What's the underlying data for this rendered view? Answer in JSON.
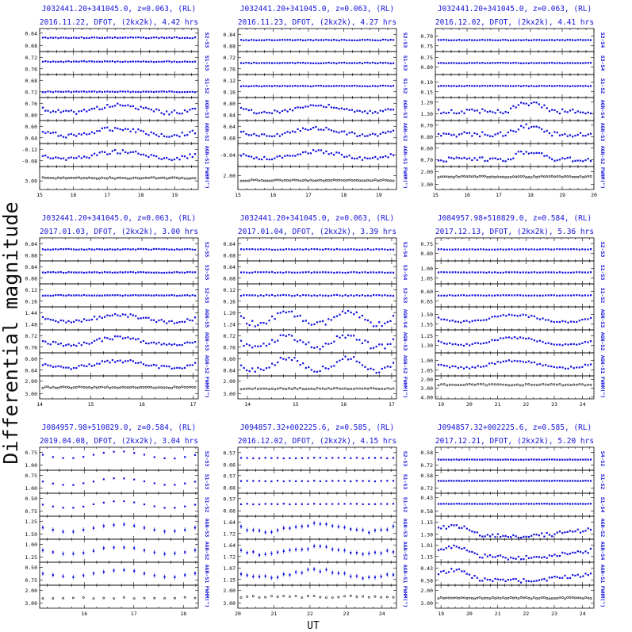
{
  "figure": {
    "ylabel": "Differential magnitude",
    "xlabel": "UT",
    "title_color": "#1515d8",
    "point_color": "#0c0ce0",
    "fwhm_color": "#111111"
  },
  "chart_data": [
    {
      "type": "scatter",
      "title1": "J032441.20+341045.0, z=0.063, (RL)",
      "title2": "2016.11.22, DFOT, (2kx2k), 4.42 hrs",
      "xlim": [
        15,
        19.7
      ],
      "xticks": [
        15,
        16,
        17,
        18,
        19
      ],
      "panels": [
        {
          "label": "S2-S3",
          "ticks": [
            "0.64",
            "0.68"
          ],
          "ylim": [
            0.625,
            0.7
          ],
          "base": 0.655,
          "amp": 0.003,
          "n": 60
        },
        {
          "label": "S1-S3",
          "ticks": [
            "0.72",
            "0.76"
          ],
          "ylim": [
            0.7,
            0.78
          ],
          "base": 0.735,
          "amp": 0.003,
          "n": 60
        },
        {
          "label": "S1-S2",
          "ticks": [
            "0.68",
            "0.72"
          ],
          "ylim": [
            0.66,
            0.74
          ],
          "base": 0.72,
          "amp": 0.003,
          "n": 60
        },
        {
          "label": "AGN-S3",
          "ticks": [
            "0.76",
            "0.80"
          ],
          "ylim": [
            0.74,
            0.82
          ],
          "base": 0.78,
          "amp": 0.015,
          "n": 60
        },
        {
          "label": "AGN-S2",
          "ticks": [
            "0.60",
            "0.64"
          ],
          "ylim": [
            0.58,
            0.66
          ],
          "base": 0.62,
          "amp": 0.015,
          "n": 60
        },
        {
          "label": "AGN-S1",
          "ticks": [
            "-0.12",
            "-0.08"
          ],
          "ylim": [
            -0.14,
            -0.06
          ],
          "base": -0.1,
          "amp": 0.015,
          "n": 60
        },
        {
          "label": "FWHM(\")",
          "ticks": [
            "3.00"
          ],
          "ylim": [
            2.0,
            3.6
          ],
          "base": 2.8,
          "amp": 0.08,
          "n": 60,
          "fwhm": true
        }
      ]
    },
    {
      "type": "scatter",
      "title1": "J032441.20+341045.0, z=0.063, (RL)",
      "title2": "2016.11.23, DFOT, (2kx2k), 4.27 hrs",
      "xlim": [
        15,
        19.5
      ],
      "xticks": [
        15,
        16,
        17,
        18,
        19
      ],
      "panels": [
        {
          "label": "S2-S3",
          "ticks": [
            "0.84",
            "0.88"
          ],
          "ylim": [
            0.82,
            0.9
          ],
          "base": 0.86,
          "amp": 0.003,
          "n": 60
        },
        {
          "label": "S1-S3",
          "ticks": [
            "0.72",
            "0.76"
          ],
          "ylim": [
            0.7,
            0.78
          ],
          "base": 0.74,
          "amp": 0.003,
          "n": 60
        },
        {
          "label": "S1-S2",
          "ticks": [
            "0.12",
            "0.16"
          ],
          "ylim": [
            0.1,
            0.18
          ],
          "base": 0.14,
          "amp": 0.003,
          "n": 60
        },
        {
          "label": "AGN-S3",
          "ticks": [
            "0.80",
            "0.84"
          ],
          "ylim": [
            0.78,
            0.86
          ],
          "base": 0.82,
          "amp": 0.012,
          "n": 60
        },
        {
          "label": "AGN-S2",
          "ticks": [
            "0.64",
            "0.68"
          ],
          "ylim": [
            0.62,
            0.7
          ],
          "base": 0.66,
          "amp": 0.012,
          "n": 60
        },
        {
          "label": "AGN-S1",
          "ticks": [
            "-0.04"
          ],
          "ylim": [
            -0.08,
            0.0
          ],
          "base": -0.04,
          "amp": 0.012,
          "n": 60
        },
        {
          "label": "FWHM(\")",
          "ticks": [
            "2.00"
          ],
          "ylim": [
            1.6,
            2.6
          ],
          "base": 2.2,
          "amp": 0.05,
          "n": 60,
          "fwhm": true
        }
      ]
    },
    {
      "type": "scatter",
      "title1": "J032441.20+341045.0, z=0.063, (RL)",
      "title2": "2016.12.02, DFOT, (2kx2k), 4.41 hrs",
      "xlim": [
        15,
        20
      ],
      "xticks": [
        15,
        16,
        17,
        18,
        19,
        20
      ],
      "panels": [
        {
          "label": "S2-S4",
          "ticks": [
            "0.70",
            "0.75"
          ],
          "ylim": [
            0.66,
            0.78
          ],
          "base": 0.72,
          "amp": 0.003,
          "n": 60
        },
        {
          "label": "S3-S4",
          "ticks": [
            "0.75",
            "0.80"
          ],
          "ylim": [
            0.72,
            0.84
          ],
          "base": 0.78,
          "amp": 0.003,
          "n": 60
        },
        {
          "label": "S1-S2",
          "ticks": [
            "0.10",
            "0.15"
          ],
          "ylim": [
            0.06,
            0.18
          ],
          "base": 0.12,
          "amp": 0.003,
          "n": 60
        },
        {
          "label": "AGN-S4",
          "ticks": [
            "1.20",
            "1.30"
          ],
          "ylim": [
            1.16,
            1.36
          ],
          "base": 1.28,
          "amp": 0.04,
          "n": 60,
          "bump": true
        },
        {
          "label": "AGN-S3",
          "ticks": [
            "0.70",
            "0.80"
          ],
          "ylim": [
            0.66,
            0.86
          ],
          "base": 0.78,
          "amp": 0.04,
          "n": 60,
          "bump": true
        },
        {
          "label": "AGN-S2",
          "ticks": [
            "0.60",
            "0.70"
          ],
          "ylim": [
            0.56,
            0.76
          ],
          "base": 0.7,
          "amp": 0.04,
          "n": 60,
          "bump": true
        },
        {
          "label": "FWHM(\")",
          "ticks": [
            "2.00",
            "3.00"
          ],
          "ylim": [
            1.6,
            3.4
          ],
          "base": 2.4,
          "amp": 0.1,
          "n": 60,
          "fwhm": true
        }
      ]
    },
    {
      "type": "scatter",
      "title1": "J032441.20+341045.0, z=0.063, (RL)",
      "title2": "2017.01.03, DFOT, (2kx2k), 3.00 hrs",
      "xlim": [
        14,
        17.1
      ],
      "xticks": [
        14,
        15,
        16,
        17
      ],
      "panels": [
        {
          "label": "S2-S5",
          "ticks": [
            "0.84",
            "0.88"
          ],
          "ylim": [
            0.82,
            0.9
          ],
          "base": 0.86,
          "amp": 0.003,
          "n": 60
        },
        {
          "label": "S3-S5",
          "ticks": [
            "0.84",
            "0.88"
          ],
          "ylim": [
            0.82,
            0.9
          ],
          "base": 0.86,
          "amp": 0.003,
          "n": 60
        },
        {
          "label": "S2-S3",
          "ticks": [
            "0.12",
            "0.16"
          ],
          "ylim": [
            0.1,
            0.18
          ],
          "base": 0.14,
          "amp": 0.003,
          "n": 60
        },
        {
          "label": "AGN-S5",
          "ticks": [
            "1.44",
            "1.48"
          ],
          "ylim": [
            1.42,
            1.5
          ],
          "base": 1.46,
          "amp": 0.012,
          "n": 60
        },
        {
          "label": "AGN-S3",
          "ticks": [
            "0.72",
            "0.76"
          ],
          "ylim": [
            0.7,
            0.78
          ],
          "base": 0.74,
          "amp": 0.012,
          "n": 60
        },
        {
          "label": "AGN-S2",
          "ticks": [
            "0.60",
            "0.64"
          ],
          "ylim": [
            0.58,
            0.66
          ],
          "base": 0.62,
          "amp": 0.012,
          "n": 60
        },
        {
          "label": "FWHM(\")",
          "ticks": [
            "2.00",
            "3.00"
          ],
          "ylim": [
            1.6,
            3.4
          ],
          "base": 2.5,
          "amp": 0.1,
          "n": 60,
          "fwhm": true
        }
      ]
    },
    {
      "type": "scatter",
      "title1": "J032441.20+341045.0, z=0.063, (RL)",
      "title2": "2017.01.04, DFOT, (2kx2k), 3.39 hrs",
      "xlim": [
        13.8,
        17.1
      ],
      "xticks": [
        14,
        15,
        16,
        17
      ],
      "panels": [
        {
          "label": "S2-S4",
          "ticks": [
            "0.64",
            "0.68"
          ],
          "ylim": [
            0.62,
            0.7
          ],
          "base": 0.66,
          "amp": 0.003,
          "n": 55
        },
        {
          "label": "S3-S4",
          "ticks": [
            "0.64",
            "0.68"
          ],
          "ylim": [
            0.62,
            0.7
          ],
          "base": 0.66,
          "amp": 0.003,
          "n": 55
        },
        {
          "label": "S2-S3",
          "ticks": [
            "0.12",
            "0.16"
          ],
          "ylim": [
            0.1,
            0.18
          ],
          "base": 0.14,
          "amp": 0.004,
          "n": 55
        },
        {
          "label": "AGN-S4",
          "ticks": [
            "1.20",
            "1.24"
          ],
          "ylim": [
            1.18,
            1.26
          ],
          "base": 1.22,
          "amp": 0.02,
          "n": 55,
          "wave": true
        },
        {
          "label": "AGN-S3",
          "ticks": [
            "0.72",
            "0.76"
          ],
          "ylim": [
            0.7,
            0.78
          ],
          "base": 0.74,
          "amp": 0.02,
          "n": 55,
          "wave": true
        },
        {
          "label": "AGN-S2",
          "ticks": [
            "0.60",
            "0.64"
          ],
          "ylim": [
            0.58,
            0.66
          ],
          "base": 0.62,
          "amp": 0.02,
          "n": 55,
          "wave": true
        },
        {
          "label": "FWHM(\")",
          "ticks": [
            "2.00",
            "3.00"
          ],
          "ylim": [
            1.6,
            3.4
          ],
          "base": 2.6,
          "amp": 0.1,
          "n": 55,
          "fwhm": true
        }
      ]
    },
    {
      "type": "scatter",
      "title1": "J084957.98+510829.0, z=0.584, (RL)",
      "title2": "2017.12.13, DFOT, (2kx2k), 5.36 hrs",
      "xlim": [
        18.8,
        24.4
      ],
      "xticks": [
        19,
        20,
        21,
        22,
        23,
        24
      ],
      "panels": [
        {
          "label": "S2-S3",
          "ticks": [
            "0.75",
            "0.80"
          ],
          "ylim": [
            0.72,
            0.84
          ],
          "base": 0.78,
          "amp": 0.003,
          "n": 55
        },
        {
          "label": "S1-S3",
          "ticks": [
            "1.00",
            "1.05"
          ],
          "ylim": [
            0.96,
            1.08
          ],
          "base": 1.02,
          "amp": 0.003,
          "n": 55
        },
        {
          "label": "S1-S2",
          "ticks": [
            "0.60",
            "0.65"
          ],
          "ylim": [
            0.56,
            0.68
          ],
          "base": 0.62,
          "amp": 0.003,
          "n": 55
        },
        {
          "label": "AGN-S3",
          "ticks": [
            "1.50",
            "1.55"
          ],
          "ylim": [
            1.46,
            1.58
          ],
          "base": 1.52,
          "amp": 0.01,
          "n": 55
        },
        {
          "label": "AGN-S2",
          "ticks": [
            "1.25",
            "1.30"
          ],
          "ylim": [
            1.22,
            1.34
          ],
          "base": 1.28,
          "amp": 0.01,
          "n": 55
        },
        {
          "label": "AGN-S1",
          "ticks": [
            "1.00",
            "1.05"
          ],
          "ylim": [
            0.96,
            1.08
          ],
          "base": 1.02,
          "amp": 0.01,
          "n": 55
        },
        {
          "label": "FWHM(\")",
          "ticks": [
            "2.00",
            "3.00",
            "4.00"
          ],
          "ylim": [
            1.6,
            4.2
          ],
          "base": 2.6,
          "amp": 0.15,
          "n": 55,
          "fwhm": true
        }
      ]
    },
    {
      "type": "scatter",
      "title1": "J084957.98+510829.0, z=0.584, (RL)",
      "title2": "2019.04.08, DFOT, (2kx2k), 3.04 hrs",
      "xlim": [
        15.1,
        18.3
      ],
      "xticks": [
        16,
        17,
        18
      ],
      "panels": [
        {
          "label": "S2-S3",
          "ticks": [
            "0.75",
            "1.00"
          ],
          "ylim": [
            0.65,
            1.1
          ],
          "base": 0.8,
          "amp": 0.01,
          "n": 16
        },
        {
          "label": "S1-S3",
          "ticks": [
            "0.75",
            "1.00"
          ],
          "ylim": [
            0.65,
            1.1
          ],
          "base": 0.87,
          "amp": 0.01,
          "n": 16
        },
        {
          "label": "S1-S2",
          "ticks": [
            "0.50",
            "0.75"
          ],
          "ylim": [
            0.4,
            0.85
          ],
          "base": 0.62,
          "amp": 0.01,
          "n": 16
        },
        {
          "label": "AGN-S3",
          "ticks": [
            "1.25",
            "1.50"
          ],
          "ylim": [
            1.15,
            1.6
          ],
          "base": 1.38,
          "amp": 0.02,
          "n": 16,
          "err": true
        },
        {
          "label": "AGN-S2",
          "ticks": [
            "1.00",
            "1.25"
          ],
          "ylim": [
            0.9,
            1.35
          ],
          "base": 1.12,
          "amp": 0.02,
          "n": 16,
          "err": true
        },
        {
          "label": "AGN-S1",
          "ticks": [
            "0.50",
            "0.75"
          ],
          "ylim": [
            0.4,
            0.85
          ],
          "base": 0.62,
          "amp": 0.02,
          "n": 16,
          "err": true
        },
        {
          "label": "FWHM(\")",
          "ticks": [
            "2.00",
            "3.00"
          ],
          "ylim": [
            1.6,
            3.4
          ],
          "base": 2.6,
          "amp": 0.1,
          "n": 16,
          "fwhm": true
        }
      ]
    },
    {
      "type": "scatter",
      "title1": "J094857.32+002225.6, z=0.585, (RL)",
      "title2": "2016.12.02, DFOT, (2kx2k), 4.15 hrs",
      "xlim": [
        20,
        24.4
      ],
      "xticks": [
        20,
        21,
        22,
        23,
        24
      ],
      "panels": [
        {
          "label": "S2-S3",
          "ticks": [
            "0.57",
            "0.66"
          ],
          "ylim": [
            0.53,
            0.7
          ],
          "base": 0.61,
          "amp": 0.005,
          "n": 26
        },
        {
          "label": "S1-S3",
          "ticks": [
            "0.57",
            "0.66"
          ],
          "ylim": [
            0.53,
            0.7
          ],
          "base": 0.61,
          "amp": 0.005,
          "n": 26
        },
        {
          "label": "S1-S2",
          "ticks": [
            "0.57",
            "0.66"
          ],
          "ylim": [
            0.53,
            0.7
          ],
          "base": 0.61,
          "amp": 0.005,
          "n": 26
        },
        {
          "label": "AGN-S3",
          "ticks": [
            "1.64",
            "1.72"
          ],
          "ylim": [
            1.6,
            1.76
          ],
          "base": 1.68,
          "amp": 0.02,
          "n": 26,
          "err": true
        },
        {
          "label": "AGN-S2",
          "ticks": [
            "1.64",
            "1.72"
          ],
          "ylim": [
            1.6,
            1.76
          ],
          "base": 1.68,
          "amp": 0.02,
          "n": 26,
          "err": true
        },
        {
          "label": "AGN-S1",
          "ticks": [
            "1.07",
            "1.15"
          ],
          "ylim": [
            1.03,
            1.19
          ],
          "base": 1.11,
          "amp": 0.02,
          "n": 26,
          "err": true
        },
        {
          "label": "FWHM(\")",
          "ticks": [
            "2.00",
            "3.00"
          ],
          "ylim": [
            1.6,
            3.4
          ],
          "base": 2.5,
          "amp": 0.15,
          "n": 26,
          "fwhm": true
        }
      ]
    },
    {
      "type": "scatter",
      "title1": "J094857.32+002225.6, z=0.585, (RL)",
      "title2": "2017.12.21, DFOT, (2kx2k), 5.20 hrs",
      "xlim": [
        18.8,
        24.4
      ],
      "xticks": [
        19,
        20,
        21,
        22,
        23,
        24
      ],
      "panels": [
        {
          "label": "S4-S2",
          "ticks": [
            "0.58",
            "0.72"
          ],
          "ylim": [
            0.52,
            0.78
          ],
          "base": 0.66,
          "amp": 0.004,
          "n": 60
        },
        {
          "label": "S1-S2",
          "ticks": [
            "0.58",
            "0.72"
          ],
          "ylim": [
            0.52,
            0.78
          ],
          "base": 0.64,
          "amp": 0.004,
          "n": 60
        },
        {
          "label": "S1-S4",
          "ticks": [
            "0.43",
            "0.58"
          ],
          "ylim": [
            0.38,
            0.64
          ],
          "base": 0.5,
          "amp": 0.004,
          "n": 60
        },
        {
          "label": "AGN-S2",
          "ticks": [
            "1.15",
            "1.30"
          ],
          "ylim": [
            1.08,
            1.36
          ],
          "base": 1.24,
          "amp": 0.05,
          "n": 60,
          "dip": true
        },
        {
          "label": "AGN-S4",
          "ticks": [
            "1.01",
            "1.15"
          ],
          "ylim": [
            0.94,
            1.22
          ],
          "base": 1.08,
          "amp": 0.05,
          "n": 60,
          "dip": true
        },
        {
          "label": "AGN-S1",
          "ticks": [
            "0.43",
            "0.58"
          ],
          "ylim": [
            0.36,
            0.64
          ],
          "base": 0.5,
          "amp": 0.05,
          "n": 60,
          "dip": true
        },
        {
          "label": "FWHM(\")",
          "ticks": [
            "2.00",
            "3.00"
          ],
          "ylim": [
            1.6,
            3.4
          ],
          "base": 2.6,
          "amp": 0.1,
          "n": 60,
          "fwhm": true
        }
      ]
    }
  ]
}
